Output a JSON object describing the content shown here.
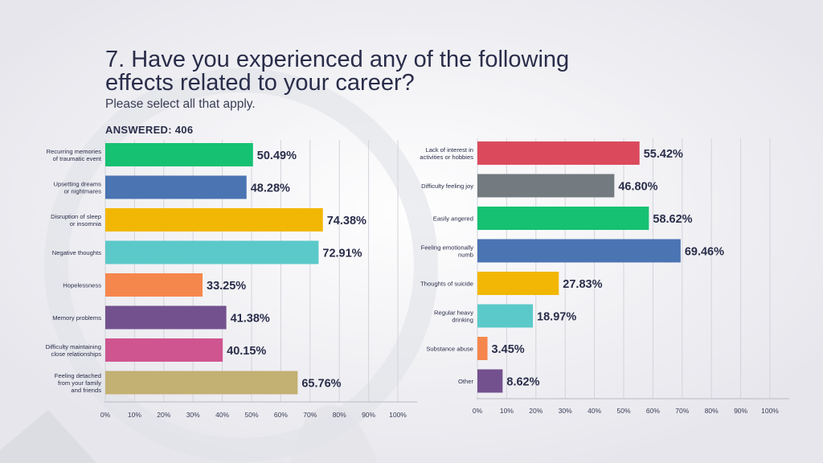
{
  "page": {
    "title_line1": "7. Have you experienced any of the following",
    "title_line2": "effects related to your career?",
    "subtitle": "Please select all that apply.",
    "answered": "ANSWERED: 406"
  },
  "chart_data": [
    {
      "type": "bar",
      "orientation": "horizontal",
      "categories": [
        [
          "Recurring memories",
          "of traumatic event"
        ],
        [
          "Upsetting dreams",
          "or nightmares"
        ],
        [
          "Disruption of sleep",
          "or insomnia"
        ],
        [
          "Negative thoughts"
        ],
        [
          "Hopelessness"
        ],
        [
          "Memory problems"
        ],
        [
          "Difficulty maintaining",
          "close relationships"
        ],
        [
          "Feeling detached",
          "from your family",
          "and friends"
        ]
      ],
      "values": [
        50.49,
        48.28,
        74.38,
        72.91,
        33.25,
        41.38,
        40.15,
        65.76
      ],
      "value_labels": [
        "50.49%",
        "48.28%",
        "74.38%",
        "72.91%",
        "33.25%",
        "41.38%",
        "40.15%",
        "65.76%"
      ],
      "colors": [
        "#16c172",
        "#4a74b2",
        "#f2b705",
        "#5bc9c9",
        "#f5874d",
        "#73518e",
        "#cf5590",
        "#c3b073"
      ],
      "xticks": [
        "0%",
        "10%",
        "20%",
        "30%",
        "40%",
        "50%",
        "60%",
        "70%",
        "80%",
        "90%",
        "100%"
      ],
      "xlim": [
        0,
        100
      ],
      "grid": true
    },
    {
      "type": "bar",
      "orientation": "horizontal",
      "categories": [
        [
          "Lack of interest in",
          "activities or hobbies"
        ],
        [
          "Difficulty feeling joy"
        ],
        [
          "Easily angered"
        ],
        [
          "Feeling emotionally",
          "numb"
        ],
        [
          "Thoughts of suicide"
        ],
        [
          "Regular heavy",
          "drinking"
        ],
        [
          "Substance abuse"
        ],
        [
          "Other"
        ]
      ],
      "values": [
        55.42,
        46.8,
        58.62,
        69.46,
        27.83,
        18.97,
        3.45,
        8.62
      ],
      "value_labels": [
        "55.42%",
        "46.80%",
        "58.62%",
        "69.46%",
        "27.83%",
        "18.97%",
        "3.45%",
        "8.62%"
      ],
      "colors": [
        "#db4a5c",
        "#737a80",
        "#16c172",
        "#4a74b2",
        "#f2b705",
        "#5bc9c9",
        "#f5874d",
        "#73518e"
      ],
      "xticks": [
        "0%",
        "10%",
        "20%",
        "30%",
        "40%",
        "50%",
        "60%",
        "70%",
        "80%",
        "90%",
        "100%"
      ],
      "xlim": [
        0,
        100
      ],
      "grid": true
    }
  ]
}
